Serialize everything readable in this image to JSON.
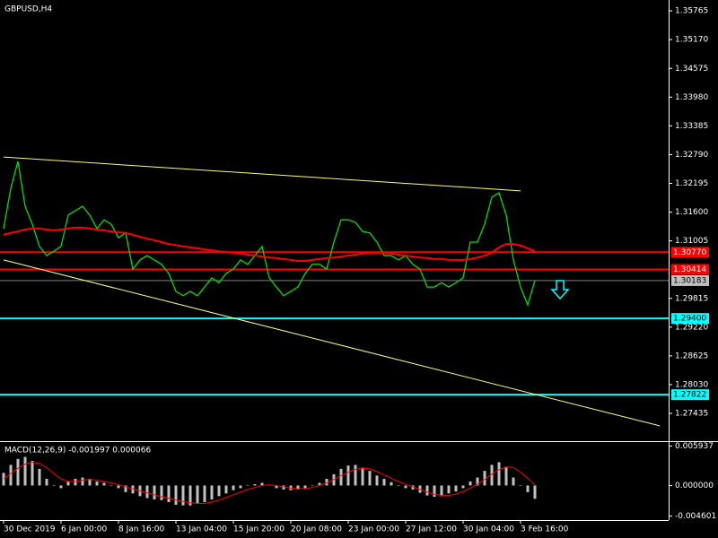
{
  "chart_data": [
    {
      "type": "line",
      "title": "GBPUSD,H4",
      "categories": [
        "30 Dec 2019",
        null,
        null,
        null,
        null,
        null,
        null,
        null,
        "6 Jan 00:00",
        null,
        null,
        null,
        null,
        null,
        null,
        null,
        "8 Jan 16:00",
        null,
        null,
        null,
        null,
        null,
        null,
        null,
        "13 Jan 04:00",
        null,
        null,
        null,
        null,
        null,
        null,
        null,
        "15 Jan 20:00",
        null,
        null,
        null,
        null,
        null,
        null,
        null,
        "20 Jan 08:00",
        null,
        null,
        null,
        null,
        null,
        null,
        null,
        "23 Jan 00:00",
        null,
        null,
        null,
        null,
        null,
        null,
        null,
        "27 Jan 12:00",
        null,
        null,
        null,
        null,
        null,
        null,
        null,
        "30 Jan 04:00",
        null,
        null,
        null,
        null,
        null,
        null,
        null,
        "3 Feb 16:00",
        null,
        null
      ],
      "series": [
        {
          "color": "#00e000",
          "values": [
            1.3126,
            1.3209,
            1.3265,
            1.3172,
            1.3135,
            1.3089,
            1.307,
            1.3079,
            1.3089,
            1.3154,
            1.3163,
            1.3172,
            1.3154,
            1.3126,
            1.3144,
            1.3135,
            1.3107,
            1.3117,
            1.3042,
            1.3061,
            1.307,
            1.3061,
            1.3052,
            1.3033,
            1.2996,
            1.2987,
            1.2996,
            1.2987,
            1.3005,
            1.3024,
            1.3014,
            1.3033,
            1.3042,
            1.3061,
            1.3052,
            1.307,
            1.3089,
            1.3024,
            1.3005,
            1.2987,
            1.2996,
            1.3005,
            1.3033,
            1.3052,
            1.3052,
            1.3042,
            1.3098,
            1.3144,
            1.3144,
            1.3139,
            1.312,
            1.3117,
            1.3098,
            1.307,
            1.307,
            1.3061,
            1.307,
            1.3052,
            1.3042,
            1.3005,
            1.3005,
            1.3014,
            1.3005,
            1.3014,
            1.3024,
            1.3098,
            1.3098,
            1.3135,
            1.3191,
            1.32,
            1.3154,
            1.3061,
            1.3005,
            1.2968,
            1.3018
          ]
        },
        {
          "color": "#ff0000",
          "values": [
            1.3113,
            1.3117,
            1.312,
            1.3124,
            1.3126,
            1.3126,
            1.3124,
            1.3122,
            1.3124,
            1.3126,
            1.3128,
            1.3128,
            1.3126,
            1.3124,
            1.3122,
            1.312,
            1.3118,
            1.3117,
            1.3113,
            1.3109,
            1.3105,
            1.3102,
            1.3098,
            1.3094,
            1.3092,
            1.3089,
            1.3087,
            1.3085,
            1.3083,
            1.3081,
            1.3079,
            1.3077,
            1.3076,
            1.3074,
            1.3072,
            1.307,
            1.3068,
            1.3066,
            1.3065,
            1.3063,
            1.3061,
            1.3059,
            1.3059,
            1.3061,
            1.3063,
            1.3065,
            1.3066,
            1.3068,
            1.307,
            1.3072,
            1.3074,
            1.3076,
            1.3076,
            1.3076,
            1.3074,
            1.3072,
            1.307,
            1.3068,
            1.3066,
            1.3065,
            1.3063,
            1.3063,
            1.3061,
            1.3061,
            1.3061,
            1.3063,
            1.3066,
            1.307,
            1.3076,
            1.3087,
            1.3094,
            1.3094,
            1.3091,
            1.3085,
            1.3079
          ]
        }
      ],
      "ylim": [
        1.2686,
        1.3599
      ],
      "yticks": [
        1.35765,
        {
          "value": 1.3517,
          "label": "1.35170"
        },
        1.34575,
        {
          "value": 1.3398,
          "label": "1.33980"
        },
        1.33385,
        {
          "value": 1.3279,
          "label": "1.32790"
        },
        1.32195,
        {
          "value": 1.316,
          "label": "1.31600"
        },
        1.31005,
        1.29815,
        {
          "value": 1.2922,
          "label": "1.29220"
        },
        1.28625,
        {
          "value": 1.2803,
          "label": "1.28030"
        },
        1.27435
      ],
      "levels": [
        {
          "value": 1.3077,
          "label": "1.30770",
          "color": "#ff0000"
        },
        {
          "value": 1.30414,
          "label": "1.30414",
          "color": "#ff0000"
        },
        {
          "value": 1.30183,
          "label": "1.30183",
          "color": "#c0c0c0"
        },
        {
          "value": 1.294,
          "label": "1.29400",
          "color": "#00ffff"
        },
        {
          "value": 1.27822,
          "label": "1.27822",
          "color": "#00ffff"
        }
      ],
      "trendlines": [
        {
          "x": [
            0,
            72
          ],
          "values": [
            1.3274,
            1.3204
          ],
          "color": "#ffff66",
          "ray": false
        },
        {
          "x": [
            0,
            74
          ],
          "values": [
            1.3061,
            1.2783
          ],
          "color": "#ffff66",
          "ray": true
        }
      ],
      "grid": false
    },
    {
      "type": "macd",
      "title": "MACD(12,26,9) -0.001997 0.000066",
      "series": [
        {
          "type": "bar",
          "color": "#c0c0c0",
          "values": [
            0.0019,
            0.0031,
            0.004,
            0.0043,
            0.0037,
            0.0025,
            0.001,
            0,
            -0.0004,
            0.0006,
            0.001,
            0.0012,
            0.001,
            0.0006,
            0.0004,
            0,
            -0.0004,
            -0.001,
            -0.0012,
            -0.0016,
            -0.0019,
            -0.0021,
            -0.0022,
            -0.0025,
            -0.0029,
            -0.003,
            -0.003,
            -0.0027,
            -0.0025,
            -0.0021,
            -0.0016,
            -0.0012,
            -0.0007,
            -0.0004,
            0,
            0.0002,
            0.0004,
            0.0001,
            -0.0004,
            -0.0006,
            -0.0007,
            -0.0006,
            -0.0004,
            0,
            0.0004,
            0.001,
            0.0017,
            0.0025,
            0.003,
            0.0031,
            0.0027,
            0.0022,
            0.0015,
            0.001,
            0.0005,
            0,
            -0.0004,
            -0.0006,
            -0.0011,
            -0.0015,
            -0.0017,
            -0.0016,
            -0.0012,
            -0.0009,
            -0.0004,
            0.0006,
            0.0012,
            0.0022,
            0.0031,
            0.0035,
            0.0027,
            0.0012,
            0,
            -0.001,
            -0.002
          ]
        },
        {
          "type": "line",
          "color": "#ff0000",
          "values": [
            0.001,
            0.0018,
            0.0026,
            0.0032,
            0.0035,
            0.0033,
            0.0027,
            0.0018,
            0.001,
            0.0006,
            0.0006,
            0.0008,
            0.0009,
            0.0008,
            0.0006,
            0.0004,
            0.0001,
            -0.0002,
            -0.0005,
            -0.0008,
            -0.0011,
            -0.0014,
            -0.0017,
            -0.0019,
            -0.0022,
            -0.0024,
            -0.0026,
            -0.0027,
            -0.0027,
            -0.0025,
            -0.0022,
            -0.0018,
            -0.0014,
            -0.001,
            -0.0006,
            -0.0003,
            0,
            0.0001,
            0,
            -0.0002,
            -0.0004,
            -0.0005,
            -0.0005,
            -0.0003,
            0,
            0.0004,
            0.0009,
            0.0015,
            0.002,
            0.0024,
            0.0026,
            0.0025,
            0.0021,
            0.0016,
            0.0011,
            0.0006,
            0.0002,
            -0.0002,
            -0.0006,
            -0.001,
            -0.0013,
            -0.0015,
            -0.0015,
            -0.0013,
            -0.0009,
            -0.0004,
            0.0002,
            0.0009,
            0.0017,
            0.0024,
            0.0028,
            0.0027,
            0.002,
            0.0011,
            0.0001
          ]
        }
      ],
      "ylim": [
        -0.0052,
        0.0064
      ],
      "yticks": [
        0.005937,
        {
          "value": 0,
          "label": "0.000000"
        },
        -0.004601
      ]
    }
  ]
}
